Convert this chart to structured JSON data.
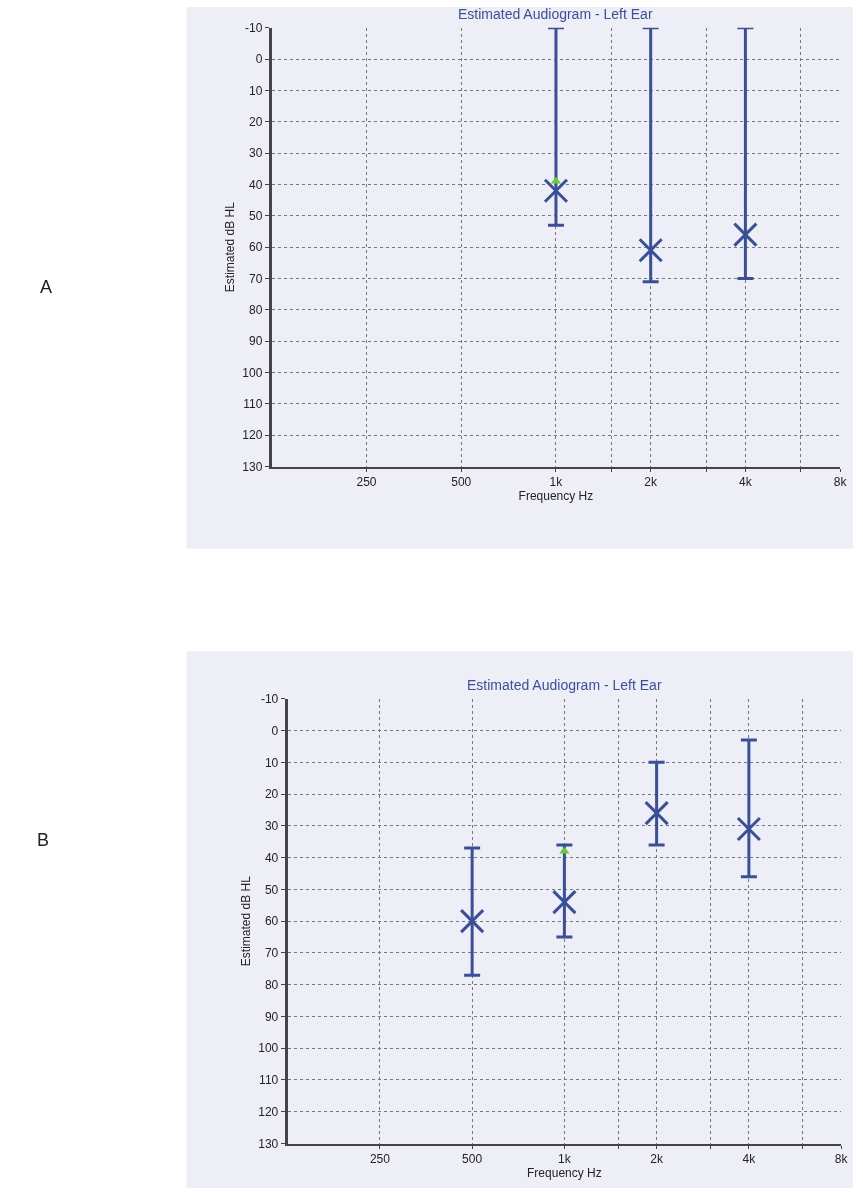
{
  "chart_data": [
    {
      "type": "scatter",
      "title": "Estimated Audiogram - Left Ear",
      "xlabel": "Frequency Hz",
      "ylabel": "Estimated dB HL",
      "annotations": [
        "A"
      ],
      "log": "x",
      "grid": true,
      "xlim": [
        125,
        8000
      ],
      "ylim": [
        130,
        -10
      ],
      "xticks": [
        {
          "value": 250,
          "label": "250"
        },
        {
          "value": 500,
          "label": "500"
        },
        {
          "value": 1000,
          "label": "1k"
        },
        {
          "value": 1500,
          "label": null
        },
        {
          "value": 2000,
          "label": "2k"
        },
        {
          "value": 3000,
          "label": null
        },
        {
          "value": 4000,
          "label": "4k"
        },
        {
          "value": 6000,
          "label": null
        },
        {
          "value": 8000,
          "label": "8k"
        }
      ],
      "yticks": [
        -10,
        0,
        10,
        20,
        30,
        40,
        50,
        60,
        70,
        80,
        90,
        100,
        110,
        120,
        130
      ],
      "series": [
        {
          "color": "#3a4f9a",
          "marker": "cross",
          "x": [
            1000,
            2000,
            4000
          ],
          "values": [
            42,
            61,
            56
          ],
          "errors": [
            [
              -10,
              53
            ],
            [
              -10,
              71
            ],
            [
              -10,
              70
            ]
          ]
        },
        {
          "color": "#66cc33",
          "marker": "triangle",
          "x": [
            1000
          ],
          "values": [
            39
          ]
        }
      ]
    },
    {
      "type": "scatter",
      "title": "Estimated Audiogram - Left Ear",
      "xlabel": "Frequency Hz",
      "ylabel": "Estimated dB HL",
      "annotations": [
        "B"
      ],
      "log": "x",
      "grid": true,
      "xlim": [
        125,
        8000
      ],
      "ylim": [
        130,
        -10
      ],
      "xticks": [
        {
          "value": 250,
          "label": "250"
        },
        {
          "value": 500,
          "label": "500"
        },
        {
          "value": 1000,
          "label": "1k"
        },
        {
          "value": 1500,
          "label": null
        },
        {
          "value": 2000,
          "label": "2k"
        },
        {
          "value": 3000,
          "label": null
        },
        {
          "value": 4000,
          "label": "4k"
        },
        {
          "value": 6000,
          "label": null
        },
        {
          "value": 8000,
          "label": "8k"
        }
      ],
      "yticks": [
        -10,
        0,
        10,
        20,
        30,
        40,
        50,
        60,
        70,
        80,
        90,
        100,
        110,
        120,
        130
      ],
      "series": [
        {
          "color": "#3a4f9a",
          "marker": "cross",
          "x": [
            500,
            1000,
            2000,
            4000
          ],
          "values": [
            60,
            54,
            26,
            31
          ],
          "errors": [
            [
              37,
              77
            ],
            [
              36,
              65
            ],
            [
              10,
              36
            ],
            [
              3,
              46
            ]
          ]
        },
        {
          "color": "#66cc33",
          "marker": "triangle",
          "x": [
            1000
          ],
          "values": [
            38
          ]
        }
      ]
    }
  ]
}
